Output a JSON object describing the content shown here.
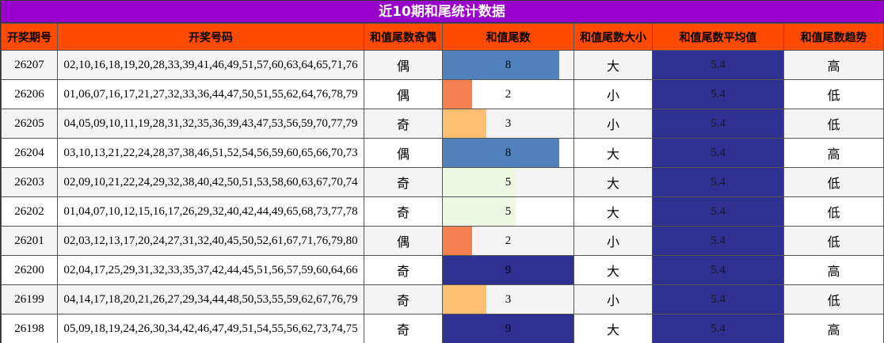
{
  "title": "近10期和尾统计数据",
  "headers": [
    "开奖期号",
    "开奖号码",
    "和值尾数奇偶",
    "和值尾数",
    "和值尾数大小",
    "和值尾数平均值",
    "和值尾数趋势"
  ],
  "colors": {
    "title_bg": "#9900cc",
    "header_bg": "#ff4a00",
    "avg_bg": "#2e3192"
  },
  "rows": [
    {
      "period": "26207",
      "numbers": "02,10,16,18,19,20,28,33,39,41,46,49,51,57,60,63,64,65,71,76",
      "parity": "偶",
      "tail": "8",
      "tail_value": 8,
      "tail_color": "#4f81bd",
      "size": "大",
      "avg": "5.4",
      "trend": "高"
    },
    {
      "period": "26206",
      "numbers": "01,06,07,16,17,21,27,32,33,36,44,47,50,51,55,62,64,76,78,79",
      "parity": "偶",
      "tail": "2",
      "tail_value": 2,
      "tail_color": "#f47f4e",
      "size": "小",
      "avg": "5.4",
      "trend": "低"
    },
    {
      "period": "26205",
      "numbers": "04,05,09,10,11,19,28,31,32,35,36,39,43,47,53,56,59,70,77,79",
      "parity": "奇",
      "tail": "3",
      "tail_value": 3,
      "tail_color": "#ffbf73",
      "size": "小",
      "avg": "5.4",
      "trend": "低"
    },
    {
      "period": "26204",
      "numbers": "03,10,13,21,22,24,28,37,38,46,51,52,54,56,59,60,65,66,70,73",
      "parity": "偶",
      "tail": "8",
      "tail_value": 8,
      "tail_color": "#4f81bd",
      "size": "大",
      "avg": "5.4",
      "trend": "高"
    },
    {
      "period": "26203",
      "numbers": "02,09,10,21,22,24,29,32,38,40,42,50,51,53,58,60,63,67,70,74",
      "parity": "奇",
      "tail": "5",
      "tail_value": 5,
      "tail_color": "#eef7e1",
      "size": "大",
      "avg": "5.4",
      "trend": "低"
    },
    {
      "period": "26202",
      "numbers": "01,04,07,10,12,15,16,17,26,29,32,40,42,44,49,65,68,73,77,78",
      "parity": "奇",
      "tail": "5",
      "tail_value": 5,
      "tail_color": "#eef7e1",
      "size": "大",
      "avg": "5.4",
      "trend": "低"
    },
    {
      "period": "26201",
      "numbers": "02,03,12,13,17,20,24,27,31,32,40,45,50,52,61,67,71,76,79,80",
      "parity": "偶",
      "tail": "2",
      "tail_value": 2,
      "tail_color": "#f47f4e",
      "size": "小",
      "avg": "5.4",
      "trend": "低"
    },
    {
      "period": "26200",
      "numbers": "02,04,17,25,29,31,32,33,35,37,42,44,45,51,56,57,59,60,64,66",
      "parity": "奇",
      "tail": "9",
      "tail_value": 9,
      "tail_color": "#2e3192",
      "size": "大",
      "avg": "5.4",
      "trend": "高"
    },
    {
      "period": "26199",
      "numbers": "04,14,17,18,20,21,26,27,29,34,44,48,50,53,55,59,62,67,76,79",
      "parity": "奇",
      "tail": "3",
      "tail_value": 3,
      "tail_color": "#ffbf73",
      "size": "小",
      "avg": "5.4",
      "trend": "低"
    },
    {
      "period": "26198",
      "numbers": "05,09,18,19,24,26,30,34,42,46,47,49,51,54,55,56,62,73,74,75",
      "parity": "奇",
      "tail": "9",
      "tail_value": 9,
      "tail_color": "#2e3192",
      "size": "大",
      "avg": "5.4",
      "trend": "高"
    }
  ]
}
